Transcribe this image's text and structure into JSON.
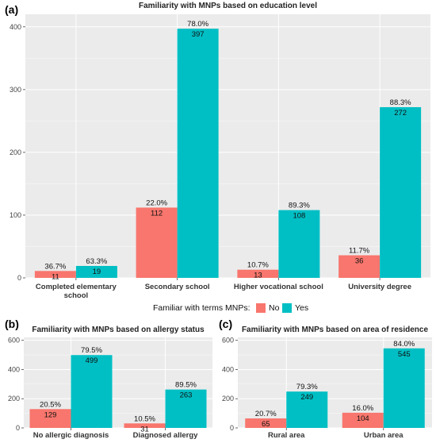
{
  "colors": {
    "no": "#F8766D",
    "yes": "#00BFC4",
    "panel": "#EBEBEB",
    "grid": "#FFFFFF"
  },
  "legend": {
    "title": "Familiar with terms MNPs:",
    "no": "No",
    "yes": "Yes",
    "placement": "between panel (a) and panels (b),(c)"
  },
  "chart_data": [
    {
      "panel": "(a)",
      "type": "bar",
      "title": "Familiarity with MNPs based on education level",
      "categories": [
        "Completed elementary school",
        "Secondary school",
        "Higher vocational school",
        "University degree"
      ],
      "category_lines": [
        [
          "Completed elementary",
          "school"
        ],
        [
          "Secondary school"
        ],
        [
          "Higher vocational school"
        ],
        [
          "University degree"
        ]
      ],
      "series": [
        {
          "name": "No",
          "values": [
            11,
            112,
            13,
            36
          ],
          "pct": [
            "36.7%",
            "22.0%",
            "10.7%",
            "11.7%"
          ]
        },
        {
          "name": "Yes",
          "values": [
            19,
            397,
            108,
            272
          ],
          "pct": [
            "63.3%",
            "78.0%",
            "89.3%",
            "88.3%"
          ]
        }
      ],
      "yticks": [
        0,
        100,
        200,
        300,
        400
      ],
      "ylim": [
        0,
        420
      ],
      "grid": true
    },
    {
      "panel": "(b)",
      "type": "bar",
      "title": "Familiarity with MNPs based on allergy status",
      "categories": [
        "No allergic diagnosis",
        "Diagnosed allergy"
      ],
      "category_lines": [
        [
          "No allergic diagnosis"
        ],
        [
          "Diagnosed allergy"
        ]
      ],
      "series": [
        {
          "name": "No",
          "values": [
            129,
            31
          ],
          "pct": [
            "20.5%",
            "10.5%"
          ]
        },
        {
          "name": "Yes",
          "values": [
            499,
            263
          ],
          "pct": [
            "79.5%",
            "89.5%"
          ]
        }
      ],
      "yticks": [
        0,
        200,
        400,
        600
      ],
      "ylim": [
        0,
        620
      ],
      "grid": true
    },
    {
      "panel": "(c)",
      "type": "bar",
      "title": "Familiarity with MNPs based on area of residence",
      "categories": [
        "Rural area",
        "Urban area"
      ],
      "category_lines": [
        [
          "Rural area"
        ],
        [
          "Urban area"
        ]
      ],
      "series": [
        {
          "name": "No",
          "values": [
            65,
            104
          ],
          "pct": [
            "20.7%",
            "16.0%"
          ]
        },
        {
          "name": "Yes",
          "values": [
            249,
            545
          ],
          "pct": [
            "79.3%",
            "84.0%"
          ]
        }
      ],
      "yticks": [
        0,
        200,
        400,
        600
      ],
      "ylim": [
        0,
        620
      ],
      "grid": true
    }
  ]
}
